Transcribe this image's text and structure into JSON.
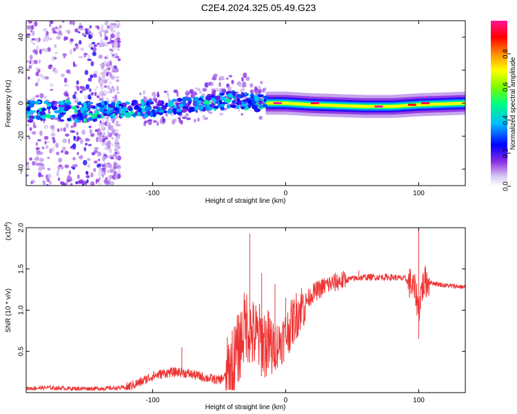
{
  "figure": {
    "title": "C2E4.2024.325.05.49.G23"
  },
  "chart_data": [
    {
      "type": "heatmap",
      "name": "spectrogram",
      "xlabel": "Height of straight line (km)",
      "ylabel": "Frequency (Hz)",
      "xlim": [
        -195,
        135
      ],
      "ylim": [
        -50,
        50
      ],
      "xticks": [
        -100,
        0,
        100
      ],
      "xtick_labels": [
        "-100",
        "0",
        "100"
      ],
      "yticks": [
        -40,
        -20,
        0,
        20,
        40
      ],
      "ytick_labels": [
        "-40",
        "-20",
        "0",
        "20",
        "40"
      ],
      "colorbar": {
        "label": "Normalized spectral amplitude",
        "range": [
          0,
          1
        ],
        "ticks": [
          0.0,
          0.2,
          0.4,
          0.6,
          0.8
        ],
        "tick_labels": [
          "0.0",
          "0.2",
          "0.4",
          "0.6",
          "0.8"
        ],
        "colormap": [
          "#ffffff",
          "#d8c8f0",
          "#8a2be2",
          "#0000ff",
          "#00bfff",
          "#00ff7f",
          "#7cfc00",
          "#ffff00",
          "#ff8c00",
          "#ff0000",
          "#ff1493"
        ]
      },
      "ridge": {
        "x": [
          -195,
          -160,
          -130,
          -100,
          -80,
          -60,
          -40,
          -20,
          -10,
          0,
          20,
          60,
          80,
          100,
          135
        ],
        "y": [
          -5,
          -5,
          -4,
          -3,
          -2,
          0,
          2,
          0,
          0,
          0,
          -1,
          -2,
          -2,
          -1,
          0
        ]
      },
      "hot_spots": [
        {
          "x": -6,
          "y": 0,
          "amp": 1.0
        },
        {
          "x": 22,
          "y": 0,
          "amp": 0.95
        },
        {
          "x": 70,
          "y": -2,
          "amp": 1.0
        },
        {
          "x": 95,
          "y": -1,
          "amp": 0.9
        },
        {
          "x": 105,
          "y": 0,
          "amp": 0.95
        }
      ]
    },
    {
      "type": "line",
      "name": "snr",
      "xlabel": "Height of straight line (km)",
      "ylabel": "SNR (10 * v/v)",
      "multiplier_label": "(x10",
      "multiplier_exp": "4",
      "xlim": [
        -195,
        135
      ],
      "ylim": [
        0,
        2.0
      ],
      "xticks": [
        -100,
        0,
        100
      ],
      "xtick_labels": [
        "-100",
        "0",
        "100"
      ],
      "yticks": [
        0.5,
        1.0,
        1.5,
        2.0
      ],
      "ytick_labels": [
        "0.5",
        "1.0",
        "1.5",
        "2.0"
      ],
      "color": "#ee3333",
      "series": [
        {
          "name": "SNR",
          "x": [
            -195,
            -180,
            -160,
            -140,
            -120,
            -110,
            -100,
            -90,
            -80,
            -70,
            -60,
            -50,
            -45,
            -40,
            -35,
            -30,
            -25,
            -20,
            -15,
            -10,
            -5,
            0,
            5,
            10,
            20,
            30,
            40,
            50,
            60,
            70,
            80,
            90,
            95,
            98,
            100,
            102,
            105,
            110,
            120,
            135
          ],
          "y": [
            0.05,
            0.06,
            0.05,
            0.05,
            0.06,
            0.12,
            0.2,
            0.24,
            0.25,
            0.22,
            0.18,
            0.15,
            0.2,
            0.35,
            0.55,
            0.85,
            0.7,
            0.65,
            0.6,
            0.55,
            0.6,
            0.7,
            0.85,
            1.0,
            1.2,
            1.3,
            1.35,
            1.38,
            1.4,
            1.4,
            1.4,
            1.38,
            1.3,
            1.2,
            1.0,
            1.25,
            1.35,
            1.33,
            1.3,
            1.28
          ]
        }
      ],
      "spikes": [
        {
          "x": -78,
          "y": 0.55
        },
        {
          "x": -27,
          "y": 1.93
        },
        {
          "x": -18,
          "y": 1.45
        },
        {
          "x": -8,
          "y": 1.32
        },
        {
          "x": 0,
          "y": 1.15
        },
        {
          "x": 55,
          "y": 1.48
        },
        {
          "x": 100,
          "y": 2.0
        },
        {
          "x": 100,
          "y": 0.65
        }
      ]
    }
  ]
}
